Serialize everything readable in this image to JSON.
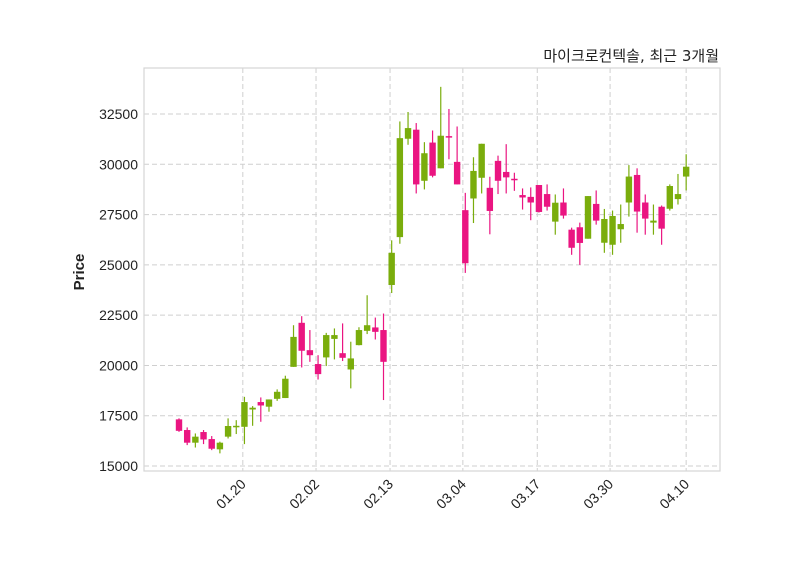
{
  "chart_data": {
    "type": "candlestick",
    "title": "마이크로컨텍솔, 최근 3개월",
    "xlabel": "",
    "ylabel": "Price",
    "ylim": [
      14800,
      34600
    ],
    "yticks": [
      15000,
      17500,
      20000,
      22500,
      25000,
      27500,
      30000,
      32500
    ],
    "xticks": [
      {
        "label": "01.20",
        "index": 7.8
      },
      {
        "label": "02.02",
        "index": 16.75
      },
      {
        "label": "02.13",
        "index": 25.8
      },
      {
        "label": "03.04",
        "index": 34.7
      },
      {
        "label": "03.17",
        "index": 43.8
      },
      {
        "label": "03.30",
        "index": 52.7
      },
      {
        "label": "04.10",
        "index": 62
      }
    ],
    "grid": true,
    "colors": {
      "up": "#7aad0c",
      "down": "#ea1581",
      "grid": "#cfcfcf",
      "frame": "#d6d6d6"
    },
    "ohlc": [
      [
        17320,
        17370,
        16700,
        16750
      ],
      [
        16790,
        16920,
        16040,
        16160
      ],
      [
        16160,
        16620,
        15920,
        16460
      ],
      [
        16690,
        16790,
        16090,
        16320
      ],
      [
        16340,
        16490,
        15790,
        15860
      ],
      [
        15830,
        16210,
        15630,
        16160
      ],
      [
        16460,
        17370,
        16370,
        16990
      ],
      [
        16950,
        17280,
        16590,
        17000
      ],
      [
        16950,
        18440,
        16090,
        18180
      ],
      [
        17810,
        17980,
        17000,
        17900
      ],
      [
        18180,
        18410,
        17200,
        18010
      ],
      [
        17950,
        18310,
        17700,
        18310
      ],
      [
        18340,
        18810,
        18240,
        18690
      ],
      [
        18380,
        19490,
        18380,
        19340
      ],
      [
        19930,
        22000,
        19930,
        21420
      ],
      [
        22120,
        22450,
        19900,
        20730
      ],
      [
        20760,
        21760,
        20180,
        20510
      ],
      [
        20070,
        20510,
        19300,
        19570
      ],
      [
        20400,
        21620,
        19970,
        21510
      ],
      [
        21320,
        21840,
        20300,
        21510
      ],
      [
        20610,
        22090,
        20220,
        20380
      ],
      [
        19800,
        21180,
        18860,
        20350
      ],
      [
        21010,
        21900,
        21000,
        21760
      ],
      [
        21720,
        23490,
        21560,
        22000
      ],
      [
        21890,
        22380,
        21290,
        21670
      ],
      [
        21760,
        22580,
        18280,
        20180
      ],
      [
        24000,
        26220,
        23600,
        25600
      ],
      [
        26380,
        32130,
        26050,
        31300
      ],
      [
        31270,
        32600,
        30970,
        31800
      ],
      [
        31720,
        32050,
        28550,
        29000
      ],
      [
        29180,
        31100,
        28750,
        30550
      ],
      [
        31080,
        31680,
        29350,
        29430
      ],
      [
        29800,
        33850,
        29800,
        31420
      ],
      [
        31400,
        32750,
        30250,
        31350
      ],
      [
        30120,
        31880,
        29000,
        29000
      ],
      [
        27720,
        28580,
        24600,
        25080
      ],
      [
        28300,
        30350,
        27080,
        29670
      ],
      [
        29330,
        31020,
        28550,
        31020
      ],
      [
        28830,
        29380,
        26520,
        27680
      ],
      [
        30170,
        30430,
        28520,
        29180
      ],
      [
        29620,
        31000,
        28550,
        29350
      ],
      [
        29280,
        29580,
        28680,
        29230
      ],
      [
        28470,
        28800,
        27750,
        28350
      ],
      [
        28380,
        28850,
        27220,
        28100
      ],
      [
        28970,
        28970,
        27600,
        27630
      ],
      [
        28520,
        29000,
        27700,
        27890
      ],
      [
        27150,
        28500,
        26500,
        28090
      ],
      [
        28100,
        28800,
        27300,
        27450
      ],
      [
        26750,
        26850,
        25500,
        25850
      ],
      [
        26870,
        27100,
        25000,
        26090
      ],
      [
        26300,
        28420,
        26300,
        28420
      ],
      [
        28030,
        28700,
        27000,
        27200
      ],
      [
        26100,
        27780,
        25600,
        27280
      ],
      [
        26000,
        27700,
        25500,
        27430
      ],
      [
        26770,
        28000,
        26100,
        27030
      ],
      [
        28100,
        29960,
        27400,
        29390
      ],
      [
        29470,
        29800,
        26600,
        27650
      ],
      [
        28100,
        28500,
        26500,
        27300
      ],
      [
        27100,
        28000,
        26500,
        27200
      ],
      [
        27890,
        27950,
        26000,
        26800
      ],
      [
        27790,
        29000,
        27700,
        28920
      ],
      [
        28270,
        29520,
        28000,
        28520
      ],
      [
        29390,
        30500,
        28700,
        29880
      ]
    ]
  }
}
